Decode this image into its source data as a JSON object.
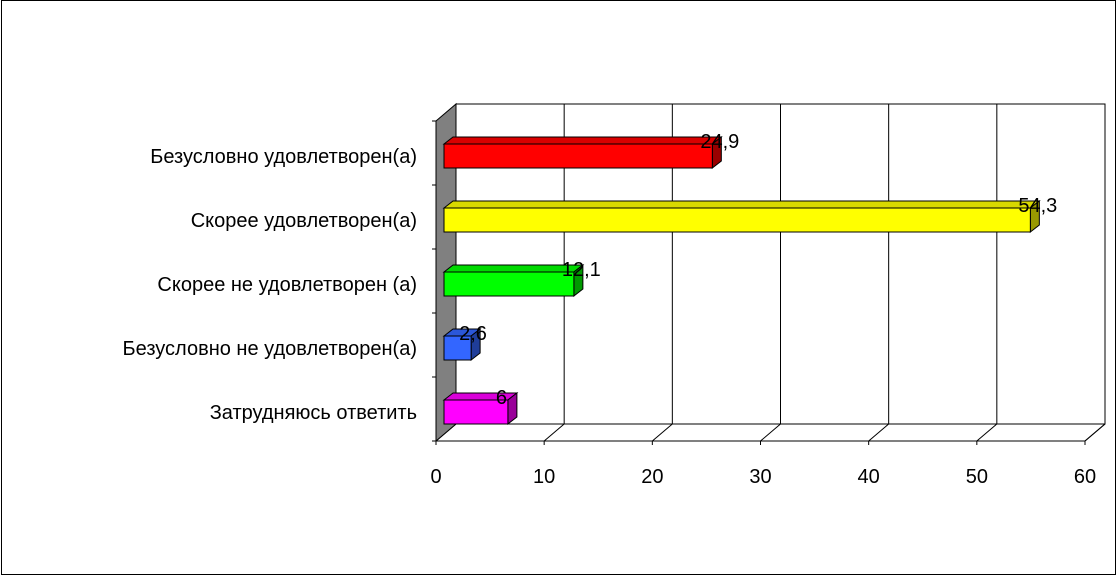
{
  "chart_data": {
    "type": "bar",
    "orientation": "horizontal",
    "style": "3d",
    "categories": [
      "Безусловно удовлетворен(а)",
      "Скорее удовлетворен(а)",
      "Скорее не удовлетворен (а)",
      "Безусловно не удовлетворен(а)",
      "Затрудняюсь ответить"
    ],
    "values": [
      24.9,
      54.3,
      12.1,
      2.6,
      6
    ],
    "value_labels": [
      "24,9",
      "54,3",
      "12,1",
      "2,6",
      "6"
    ],
    "colors": [
      "#ff0000",
      "#ffff00",
      "#00ff00",
      "#3366ff",
      "#ff00ff"
    ],
    "xlim": [
      0,
      60
    ],
    "xticks": [
      "0",
      "10",
      "20",
      "30",
      "40",
      "50",
      "60"
    ],
    "grid": true,
    "legend": "none",
    "title": "",
    "xlabel": "",
    "ylabel": ""
  }
}
